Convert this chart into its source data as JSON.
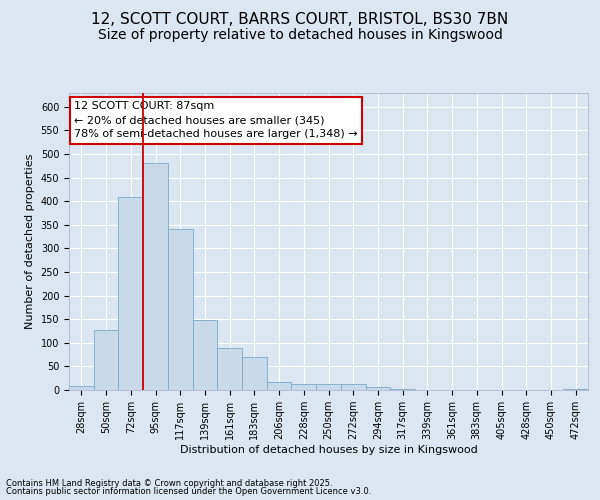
{
  "title_line1": "12, SCOTT COURT, BARRS COURT, BRISTOL, BS30 7BN",
  "title_line2": "Size of property relative to detached houses in Kingswood",
  "xlabel": "Distribution of detached houses by size in Kingswood",
  "ylabel": "Number of detached properties",
  "categories": [
    "28sqm",
    "50sqm",
    "72sqm",
    "95sqm",
    "117sqm",
    "139sqm",
    "161sqm",
    "183sqm",
    "206sqm",
    "228sqm",
    "250sqm",
    "272sqm",
    "294sqm",
    "317sqm",
    "339sqm",
    "361sqm",
    "383sqm",
    "405sqm",
    "428sqm",
    "450sqm",
    "472sqm"
  ],
  "values": [
    8,
    127,
    409,
    481,
    342,
    149,
    90,
    70,
    18,
    13,
    12,
    12,
    7,
    3,
    0,
    0,
    0,
    0,
    0,
    0,
    3
  ],
  "bar_color": "#c9d9e8",
  "bar_edge_color": "#7aaac8",
  "vline_x_index": 3,
  "vline_color": "#cc0000",
  "annotation_text": "12 SCOTT COURT: 87sqm\n← 20% of detached houses are smaller (345)\n78% of semi-detached houses are larger (1,348) →",
  "annotation_box_color": "#ffffff",
  "annotation_edge_color": "#cc0000",
  "ylim": [
    0,
    630
  ],
  "yticks": [
    0,
    50,
    100,
    150,
    200,
    250,
    300,
    350,
    400,
    450,
    500,
    550,
    600
  ],
  "background_color": "#dce6f0",
  "footer_line1": "Contains HM Land Registry data © Crown copyright and database right 2025.",
  "footer_line2": "Contains public sector information licensed under the Open Government Licence v3.0.",
  "title_fontsize": 11,
  "subtitle_fontsize": 10,
  "axis_label_fontsize": 8,
  "tick_fontsize": 7,
  "annotation_fontsize": 8,
  "footer_fontsize": 6
}
